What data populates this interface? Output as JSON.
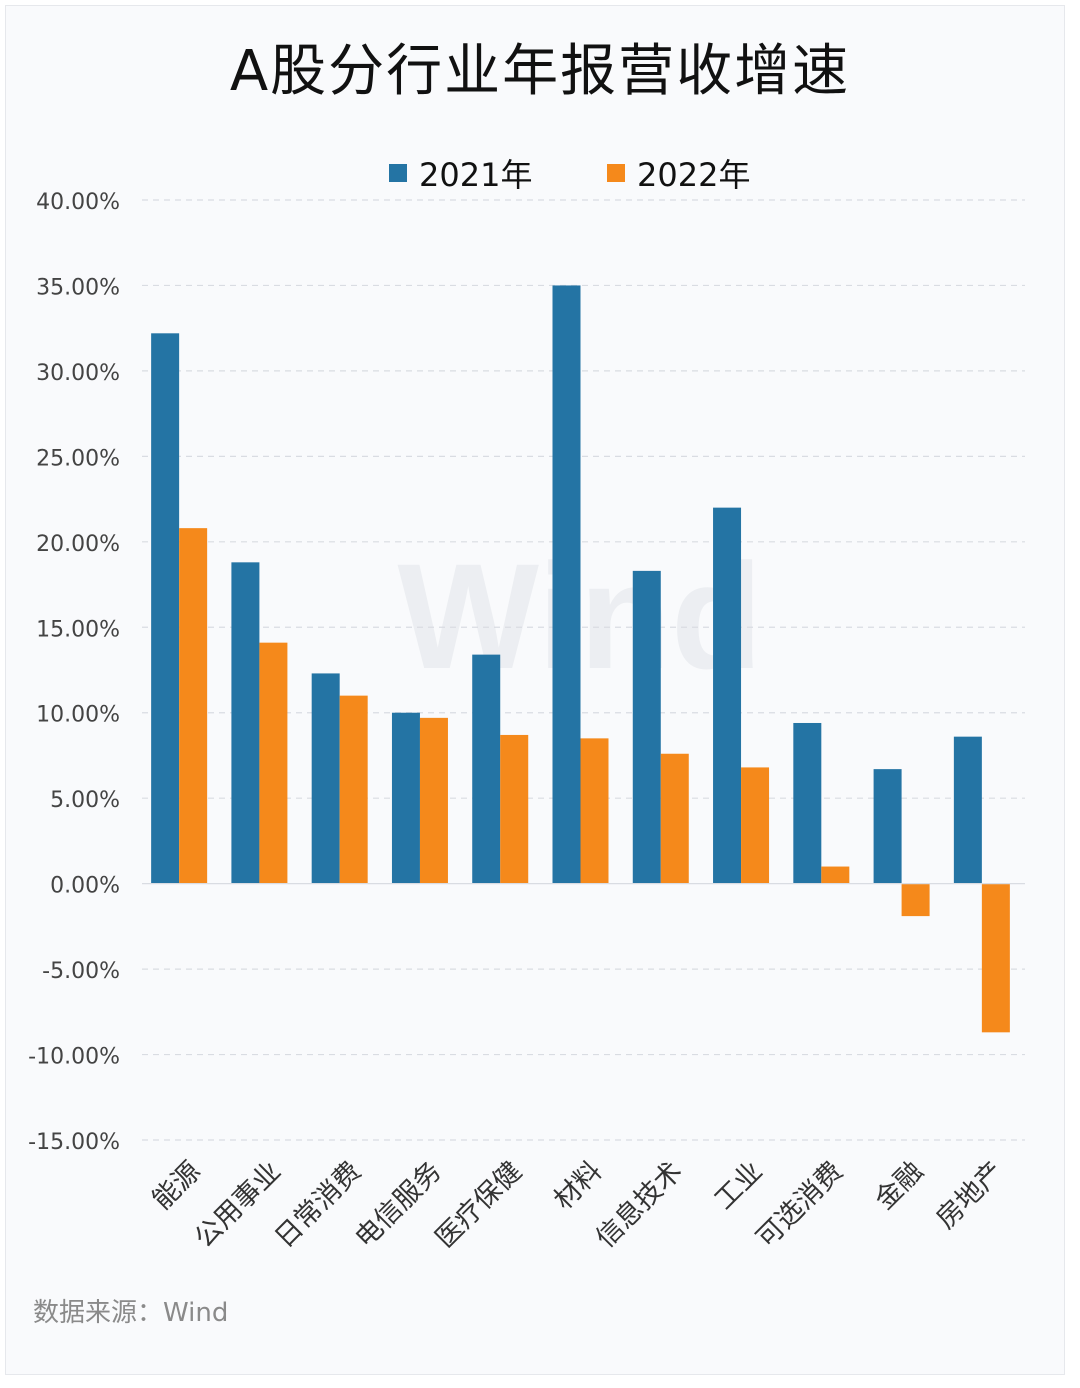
{
  "title": "A股分行业年报营收增速",
  "source": "数据来源：Wind",
  "watermark": "Wind",
  "chart_data": {
    "type": "bar",
    "title": "A股分行业年报营收增速",
    "xlabel": "",
    "ylabel": "",
    "ylim": [
      -15,
      40
    ],
    "yticks": [
      40,
      35,
      30,
      25,
      20,
      15,
      10,
      5,
      0,
      -5,
      -10,
      -15
    ],
    "ytick_labels": [
      "40.00%",
      "35.00%",
      "30.00%",
      "25.00%",
      "20.00%",
      "15.00%",
      "10.00%",
      "5.00%",
      "0.00%",
      "-5.00%",
      "-10.00%",
      "-15.00%"
    ],
    "grid": true,
    "legend_position": "top-center",
    "categories": [
      "能源",
      "公用事业",
      "日常消费",
      "电信服务",
      "医疗保健",
      "材料",
      "信息技术",
      "工业",
      "可选消费",
      "金融",
      "房地产"
    ],
    "series": [
      {
        "name": "2021年",
        "color": "#2474a4",
        "values": [
          32.2,
          18.8,
          12.3,
          10.0,
          13.4,
          35.0,
          18.3,
          22.0,
          9.4,
          6.7,
          8.6
        ]
      },
      {
        "name": "2022年",
        "color": "#f5891b",
        "values": [
          20.8,
          14.1,
          11.0,
          9.7,
          8.7,
          8.5,
          7.6,
          6.8,
          1.0,
          -1.9,
          -8.7
        ]
      }
    ]
  }
}
